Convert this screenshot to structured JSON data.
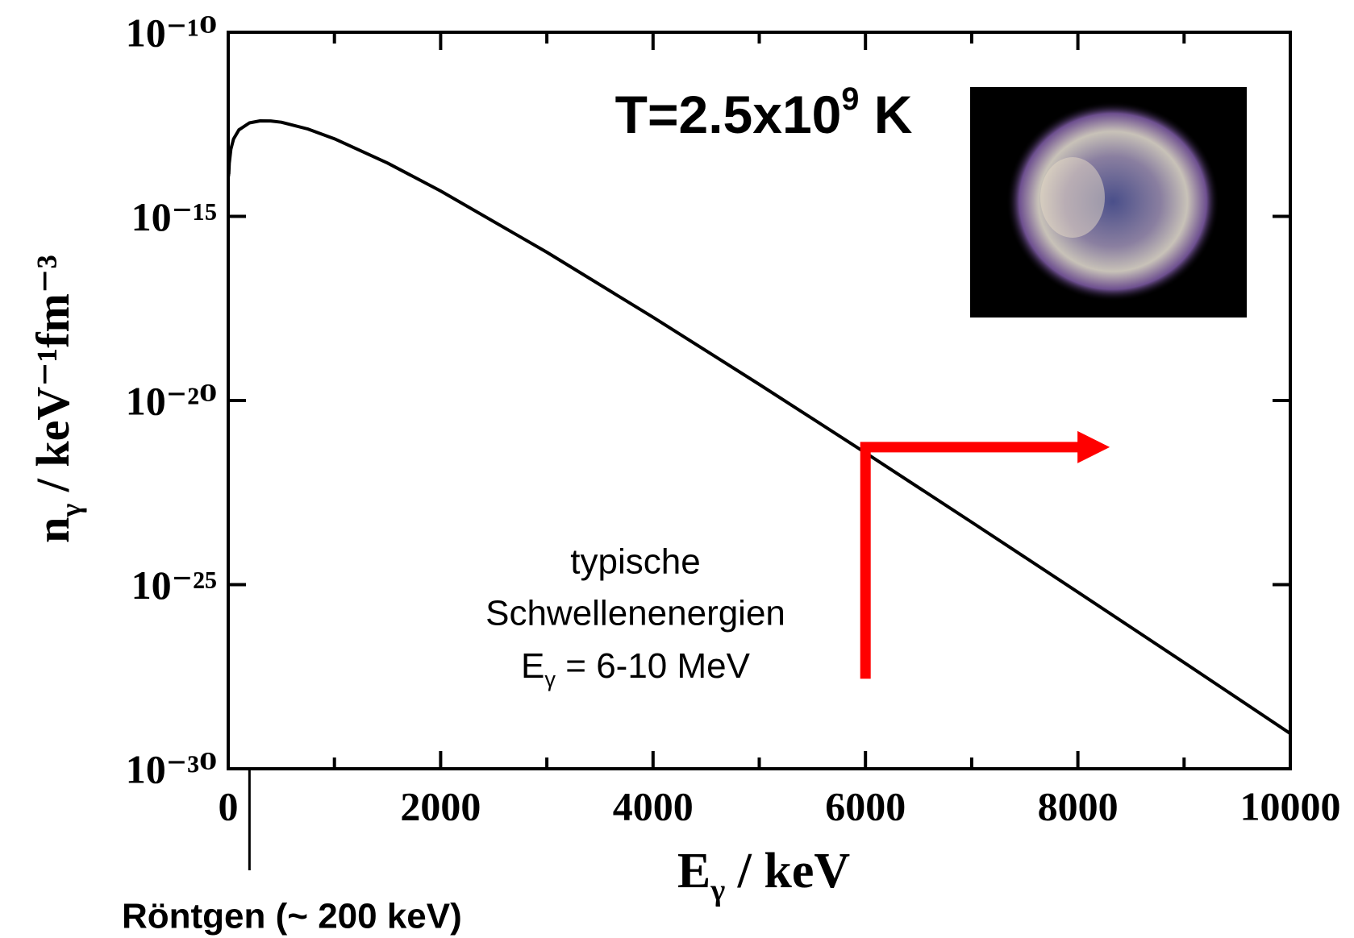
{
  "chart_data": {
    "type": "line",
    "x_label": [
      "E",
      "γ",
      " / keV"
    ],
    "y_label": [
      "n",
      "γ",
      " / keV⁻¹fm⁻³"
    ],
    "log_y": true,
    "xlim": [
      0,
      10000
    ],
    "xticks": [
      0,
      2000,
      4000,
      6000,
      8000,
      10000
    ],
    "xminorticks": [
      1000,
      3000,
      5000,
      7000,
      9000
    ],
    "ylim": [
      1e-30,
      1e-10
    ],
    "yticks": [
      {
        "value": 1e-10,
        "label": "10⁻¹⁰"
      },
      {
        "value": 1e-15,
        "label": "10⁻¹⁵"
      },
      {
        "value": 1e-20,
        "label": "10⁻²⁰"
      },
      {
        "value": 1e-25,
        "label": "10⁻²⁵"
      },
      {
        "value": 1e-30,
        "label": "10⁻³⁰"
      }
    ],
    "series": [
      {
        "color": "#000000",
        "x": [
          5,
          10,
          25,
          50,
          100,
          200,
          300,
          400,
          500,
          750,
          1000,
          1500,
          2000,
          3000,
          4000,
          5000,
          6000,
          7000,
          8000,
          9000,
          10000
        ],
        "values": [
          1.404e-14,
          2.775e-14,
          6.695e-14,
          1.262e-13,
          2.232e-13,
          3.446e-13,
          3.922e-13,
          3.904e-13,
          3.587e-13,
          2.353e-13,
          1.283e-13,
          2.807e-14,
          4.896e-15,
          1.06e-16,
          1.817e-18,
          2.734e-20,
          3.795e-22,
          4.974e-24,
          6.26e-26,
          7.65e-28,
          9.03e-30
        ]
      }
    ],
    "temperature_label": [
      "T=2.5x10",
      "9",
      " K"
    ],
    "arrow": {
      "color": "#ff0000",
      "x": [
        6000,
        6000,
        8300
      ],
      "y": [
        2.8e-28,
        5.4e-22,
        5.4e-22
      ]
    },
    "annotation": {
      "lines": [
        "typische",
        "Schwellenenergien"
      ],
      "last_line": [
        "E",
        "γ",
        " = 6-10 MeV"
      ]
    },
    "marker": {
      "x": 200,
      "label": "Röntgen (~ 200 keV)"
    }
  }
}
